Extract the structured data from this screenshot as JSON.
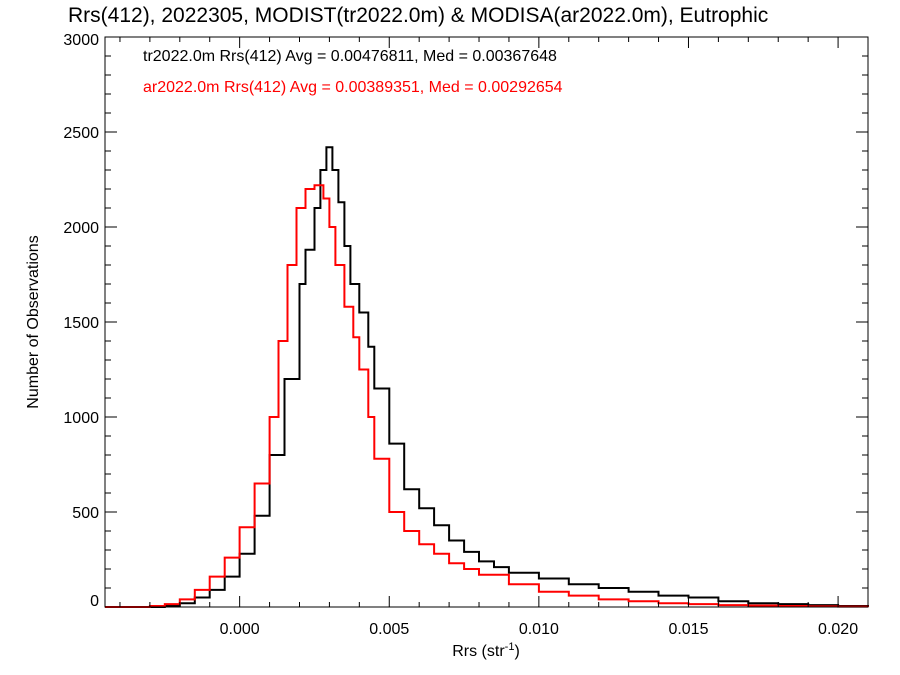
{
  "chart_data": {
    "type": "line",
    "step": true,
    "title": "Rrs(412), 2022305, MODIST(tr2022.0m) & MODISA(ar2022.0m), Eutrophic",
    "xlabel": "Rrs (str",
    "xlabel_sup": "-1",
    "xlabel_close": ")",
    "ylabel": "Number of Observations",
    "xlim": [
      -0.0045,
      0.021
    ],
    "ylim": [
      0,
      3000
    ],
    "x_ticks": [
      0.0,
      0.005,
      0.01,
      0.015,
      0.02
    ],
    "x_tick_labels": [
      "0.000",
      "0.005",
      "0.010",
      "0.015",
      "0.020"
    ],
    "y_ticks": [
      0,
      500,
      1000,
      1500,
      2000,
      2500,
      3000
    ],
    "y_tick_labels": [
      "0",
      "500",
      "1000",
      "1500",
      "2000",
      "2500",
      "3000"
    ],
    "legend_position": "top-left",
    "annotations": [
      {
        "text": "tr2022.0m Rrs(412) Avg = 0.00476811, Med = 0.00367648",
        "color": "#000000"
      },
      {
        "text": "ar2022.0m Rrs(412) Avg = 0.00389351, Med = 0.00292654",
        "color": "#ff0000"
      }
    ],
    "series": [
      {
        "color": "#000000",
        "x": [
          -0.0045,
          -0.003,
          -0.0025,
          -0.002,
          -0.0015,
          -0.001,
          -0.0005,
          0.0,
          0.0005,
          0.001,
          0.0015,
          0.002,
          0.0022,
          0.0025,
          0.0027,
          0.0029,
          0.0031,
          0.0033,
          0.0035,
          0.0037,
          0.004,
          0.0043,
          0.0045,
          0.005,
          0.0055,
          0.006,
          0.0065,
          0.007,
          0.0075,
          0.008,
          0.0085,
          0.009,
          0.01,
          0.011,
          0.012,
          0.013,
          0.014,
          0.015,
          0.016,
          0.017,
          0.018,
          0.019,
          0.02,
          0.021
        ],
        "y": [
          0,
          0,
          5,
          20,
          50,
          90,
          160,
          280,
          480,
          800,
          1200,
          1700,
          1880,
          2100,
          2300,
          2420,
          2300,
          2130,
          1900,
          1700,
          1550,
          1370,
          1150,
          860,
          620,
          520,
          430,
          350,
          290,
          240,
          210,
          180,
          150,
          120,
          100,
          80,
          60,
          50,
          30,
          20,
          15,
          10,
          5,
          0
        ]
      },
      {
        "color": "#ff0000",
        "x": [
          -0.0045,
          -0.003,
          -0.0025,
          -0.002,
          -0.0015,
          -0.001,
          -0.0005,
          0.0,
          0.0005,
          0.001,
          0.0013,
          0.0016,
          0.0019,
          0.0022,
          0.0025,
          0.0028,
          0.003,
          0.0032,
          0.0035,
          0.0038,
          0.004,
          0.0043,
          0.0045,
          0.005,
          0.0055,
          0.006,
          0.0065,
          0.007,
          0.0075,
          0.008,
          0.009,
          0.01,
          0.011,
          0.012,
          0.013,
          0.014,
          0.015,
          0.016,
          0.017,
          0.018,
          0.019,
          0.02,
          0.021
        ],
        "y": [
          0,
          5,
          15,
          40,
          90,
          160,
          260,
          420,
          650,
          1000,
          1400,
          1800,
          2100,
          2200,
          2220,
          2150,
          2000,
          1800,
          1580,
          1420,
          1250,
          1000,
          780,
          500,
          400,
          330,
          280,
          230,
          200,
          170,
          120,
          80,
          60,
          40,
          30,
          20,
          15,
          10,
          8,
          5,
          3,
          2,
          0
        ]
      }
    ]
  }
}
